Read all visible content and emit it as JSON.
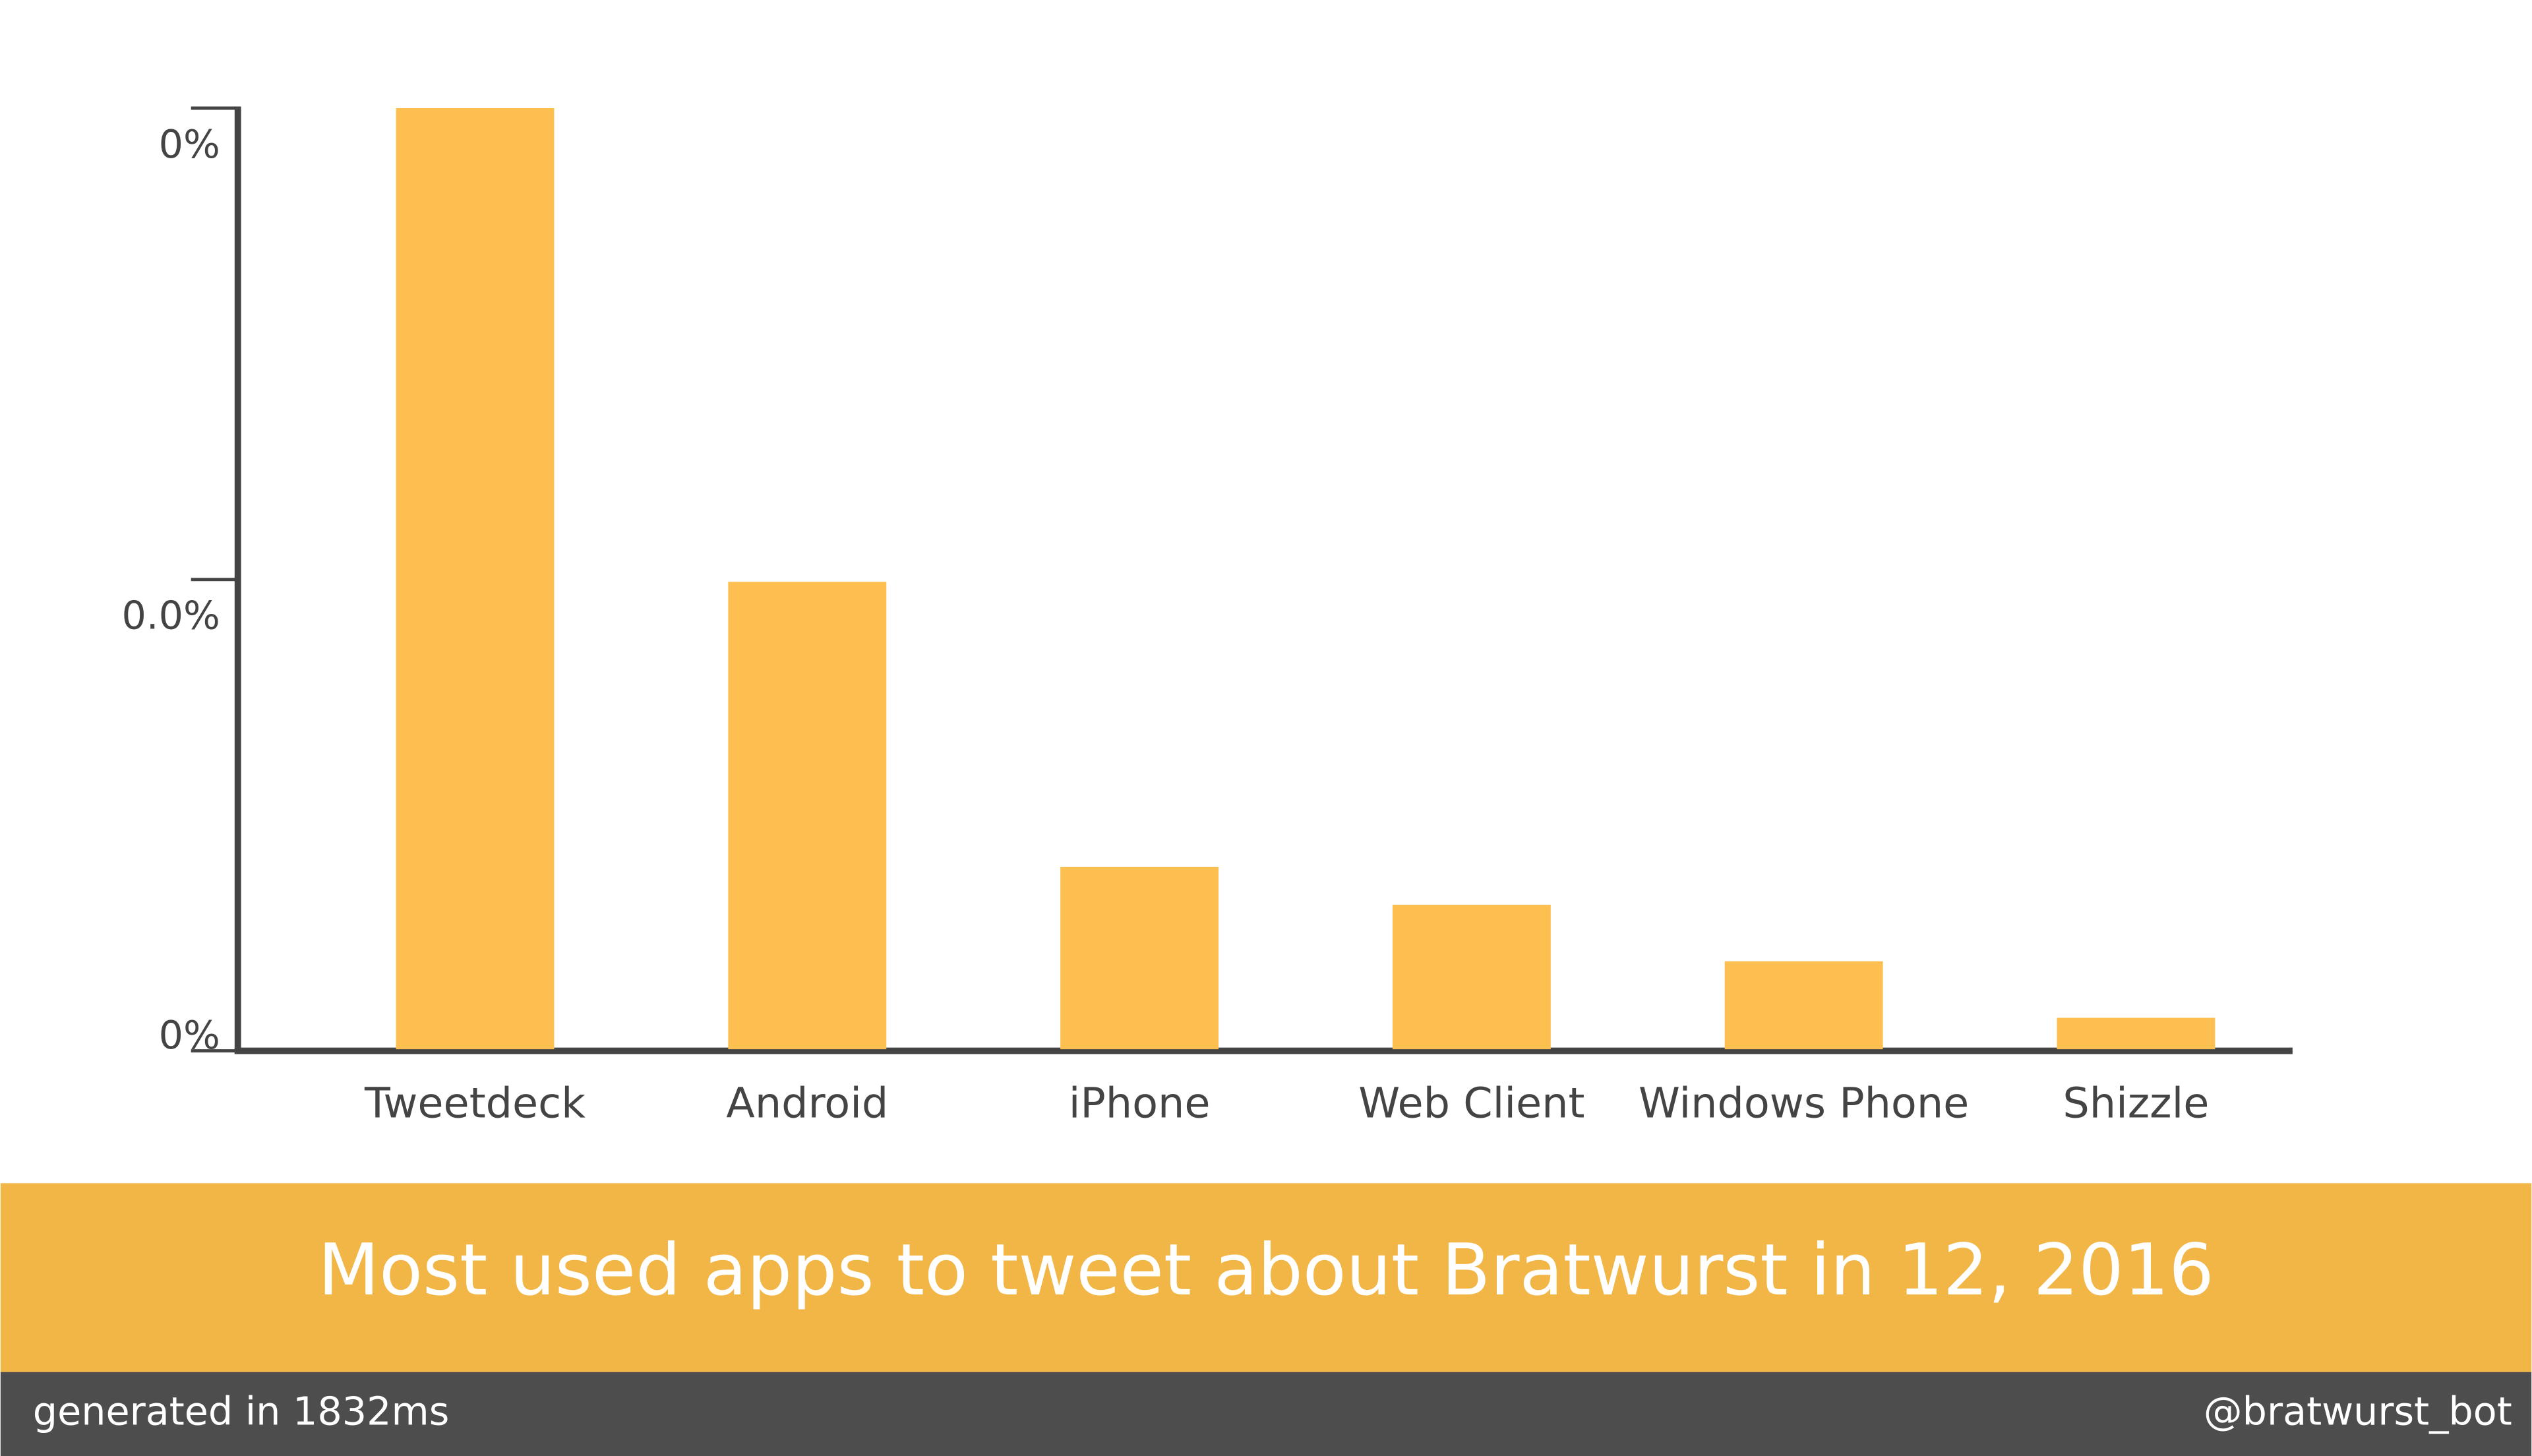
{
  "chart_data": {
    "type": "bar",
    "title": "Most used apps to tweet about Bratwurst in 12, 2016",
    "categories": [
      "Tweetdeck",
      "Android",
      "iPhone",
      "Web Client",
      "Windows Phone",
      "Shizzle"
    ],
    "values": [
      0.04,
      0.0199,
      0.0078,
      0.0062,
      0.0038,
      0.0014
    ],
    "color": "#fdbf4f",
    "ylim": [
      0,
      0.04
    ],
    "yticks": [
      {
        "value": 0,
        "label": "0%"
      },
      {
        "value": 0.02,
        "label": "0.0%"
      },
      {
        "value": 0.04,
        "label": "0%"
      }
    ],
    "grid": false
  },
  "footer": {
    "generated": "generated in 1832ms",
    "handle": "@bratwurst_bot"
  }
}
